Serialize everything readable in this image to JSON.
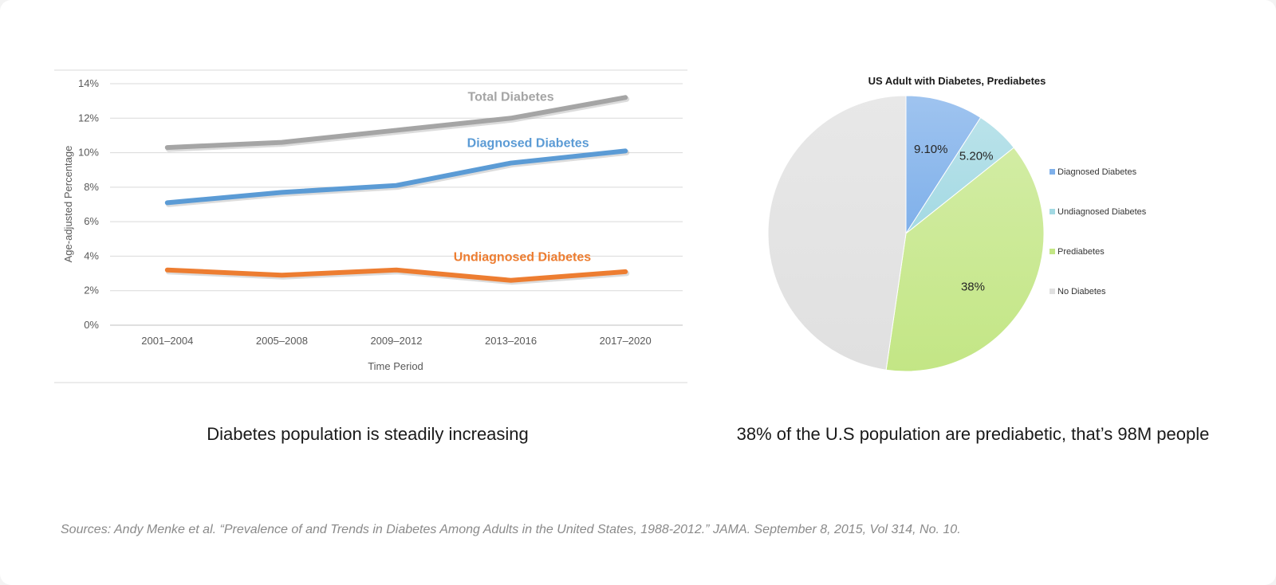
{
  "captions": {
    "left": "Diabetes population is steadily increasing",
    "right": "38% of the U.S population are prediabetic, that’s 98M people"
  },
  "sources": "Sources: Andy Menke et al. “Prevalence of and Trends in Diabetes Among Adults in the United States, 1988-2012.” JAMA. September 8, 2015, Vol 314, No. 10.",
  "chart_data": [
    {
      "type": "line",
      "title": "",
      "xlabel": "Time Period",
      "ylabel": "Age-adjusted Percentage",
      "categories": [
        "2001–2004",
        "2005–2008",
        "2009–2012",
        "2013–2016",
        "2017–2020"
      ],
      "ylim": [
        0,
        14
      ],
      "yticks": [
        0,
        2,
        4,
        6,
        8,
        10,
        12,
        14
      ],
      "ytick_labels": [
        "0%",
        "2%",
        "4%",
        "6%",
        "8%",
        "10%",
        "12%",
        "14%"
      ],
      "grid": true,
      "series": [
        {
          "name": "Total Diabetes",
          "values": [
            10.3,
            10.6,
            11.3,
            12.0,
            13.2
          ],
          "color": "#a5a5a5"
        },
        {
          "name": "Diagnosed Diabetes",
          "values": [
            7.1,
            7.7,
            8.1,
            9.4,
            10.1
          ],
          "color": "#5b9bd5"
        },
        {
          "name": "Undiagnosed Diabetes",
          "values": [
            3.2,
            2.9,
            3.2,
            2.6,
            3.1
          ],
          "color": "#ed7d31"
        }
      ]
    },
    {
      "type": "pie",
      "title": "US Adult with Diabetes, Prediabetes",
      "slices": [
        {
          "label": "Diagnosed Diabetes",
          "value": 9.1,
          "data_label": "9.10%",
          "color": "#7fb0ea"
        },
        {
          "label": "Undiagnosed Diabetes",
          "value": 5.2,
          "data_label": "5.20%",
          "color": "#a3d9e3"
        },
        {
          "label": "Prediabetes",
          "value": 38,
          "data_label": "38%",
          "color": "#c3e685"
        },
        {
          "label": "No Diabetes",
          "value": 47.7,
          "data_label": "",
          "color": "#e0e0e0"
        }
      ],
      "legend_position": "right"
    }
  ]
}
